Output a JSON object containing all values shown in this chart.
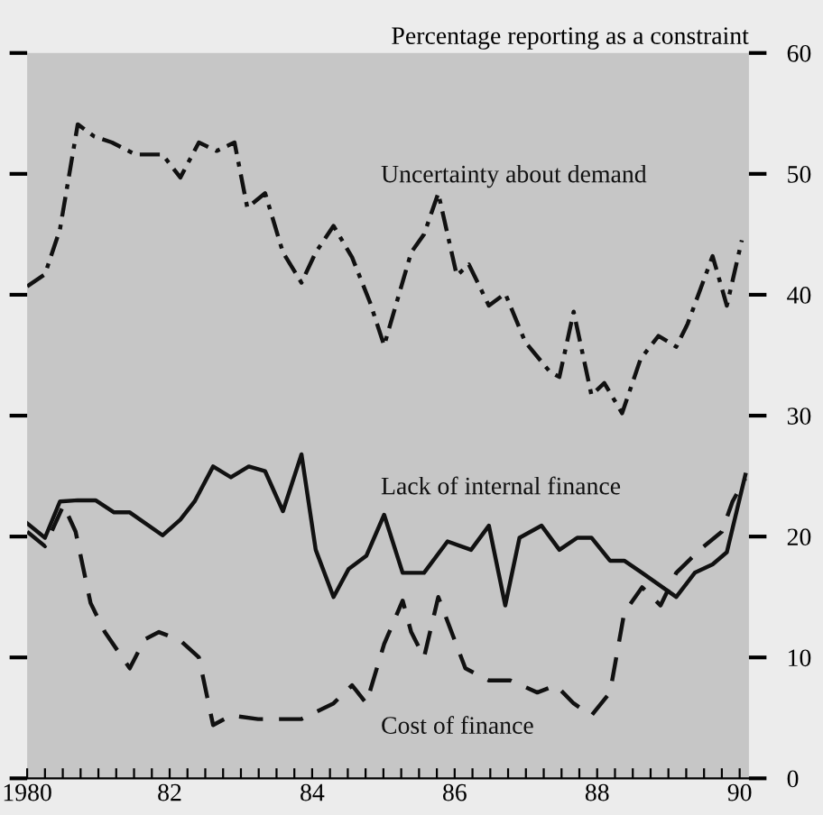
{
  "chart_data": {
    "type": "line",
    "ylabel": "Percentage reporting as a constraint",
    "xlim": [
      1980,
      1990.13
    ],
    "ylim": [
      0,
      60
    ],
    "xticks": [
      {
        "value": 1980,
        "label": "1980"
      },
      {
        "value": 1980.25,
        "label": null
      },
      {
        "value": 1980.5,
        "label": null
      },
      {
        "value": 1980.75,
        "label": null
      },
      {
        "value": 1981,
        "label": null
      },
      {
        "value": 1981.25,
        "label": null
      },
      {
        "value": 1981.5,
        "label": null
      },
      {
        "value": 1981.75,
        "label": null
      },
      {
        "value": 1982,
        "label": "82"
      },
      {
        "value": 1982.25,
        "label": null
      },
      {
        "value": 1982.5,
        "label": null
      },
      {
        "value": 1982.75,
        "label": null
      },
      {
        "value": 1983,
        "label": null
      },
      {
        "value": 1983.25,
        "label": null
      },
      {
        "value": 1983.5,
        "label": null
      },
      {
        "value": 1983.75,
        "label": null
      },
      {
        "value": 1984,
        "label": "84"
      },
      {
        "value": 1984.25,
        "label": null
      },
      {
        "value": 1984.5,
        "label": null
      },
      {
        "value": 1984.75,
        "label": null
      },
      {
        "value": 1985,
        "label": null
      },
      {
        "value": 1985.25,
        "label": null
      },
      {
        "value": 1985.5,
        "label": null
      },
      {
        "value": 1985.75,
        "label": null
      },
      {
        "value": 1986,
        "label": "86"
      },
      {
        "value": 1986.25,
        "label": null
      },
      {
        "value": 1986.5,
        "label": null
      },
      {
        "value": 1986.75,
        "label": null
      },
      {
        "value": 1987,
        "label": null
      },
      {
        "value": 1987.25,
        "label": null
      },
      {
        "value": 1987.5,
        "label": null
      },
      {
        "value": 1987.75,
        "label": null
      },
      {
        "value": 1988,
        "label": "88"
      },
      {
        "value": 1988.25,
        "label": null
      },
      {
        "value": 1988.5,
        "label": null
      },
      {
        "value": 1988.75,
        "label": null
      },
      {
        "value": 1989,
        "label": null
      },
      {
        "value": 1989.25,
        "label": null
      },
      {
        "value": 1989.5,
        "label": null
      },
      {
        "value": 1989.75,
        "label": null
      },
      {
        "value": 1990,
        "label": "90"
      }
    ],
    "yticks": [
      0,
      10,
      20,
      30,
      40,
      50,
      60
    ],
    "grid": false,
    "legend": false,
    "marker": "none",
    "series": [
      {
        "name": "Uncertainty about demand",
        "color": "#111111",
        "line_style": "dashdot",
        "x": [
          1980,
          1980.25,
          1980.46,
          1980.71,
          1980.94,
          1981.19,
          1981.52,
          1981.9,
          1982.15,
          1982.41,
          1982.66,
          1982.91,
          1983.09,
          1983.34,
          1983.59,
          1983.85,
          1984.05,
          1984.3,
          1984.56,
          1984.81,
          1985.01,
          1985.39,
          1985.57,
          1985.77,
          1985.9,
          1986.03,
          1986.2,
          1986.48,
          1986.71,
          1986.99,
          1987.34,
          1987.47,
          1987.67,
          1987.92,
          1988.1,
          1988.35,
          1988.61,
          1988.86,
          1989.11,
          1989.27,
          1989.62,
          1989.82,
          1990.03
        ],
        "values": [
          40.7,
          41.7,
          45.4,
          54.1,
          53.1,
          52.6,
          51.6,
          51.6,
          49.7,
          52.6,
          51.9,
          52.6,
          47.2,
          48.4,
          43.5,
          41.0,
          43.5,
          45.7,
          43.1,
          39.4,
          35.8,
          43.5,
          45.0,
          48.4,
          45.0,
          41.6,
          42.5,
          39.1,
          40.1,
          36.1,
          33.6,
          33.2,
          38.6,
          31.7,
          32.7,
          30.2,
          34.7,
          36.6,
          35.7,
          37.6,
          43.2,
          39.1,
          44.5
        ]
      },
      {
        "name": "Lack of internal finance",
        "color": "#111111",
        "line_style": "solid",
        "x": [
          1980,
          1980.25,
          1980.46,
          1980.71,
          1980.96,
          1981.22,
          1981.44,
          1981.9,
          1982.15,
          1982.35,
          1982.61,
          1982.86,
          1983.11,
          1983.34,
          1983.59,
          1983.85,
          1984.05,
          1984.3,
          1984.51,
          1984.76,
          1985.01,
          1985.27,
          1985.57,
          1985.9,
          1986.23,
          1986.48,
          1986.71,
          1986.91,
          1987.22,
          1987.47,
          1987.72,
          1987.92,
          1988.18,
          1988.38,
          1988.63,
          1989.11,
          1989.37,
          1989.62,
          1989.82,
          1990.08
        ],
        "values": [
          21.1,
          19.9,
          22.9,
          23.0,
          23.0,
          22.0,
          22.0,
          20.1,
          21.4,
          22.9,
          25.8,
          24.9,
          25.8,
          25.4,
          22.1,
          26.8,
          18.9,
          15.0,
          17.3,
          18.4,
          21.8,
          17.0,
          17.0,
          19.6,
          18.9,
          20.9,
          14.3,
          19.9,
          20.9,
          18.9,
          19.9,
          19.9,
          18.0,
          18.0,
          17.0,
          15.0,
          17.0,
          17.7,
          18.7,
          25.1
        ]
      },
      {
        "name": "Cost of finance",
        "color": "#111111",
        "line_style": "dashed",
        "x": [
          1980,
          1980.25,
          1980.51,
          1980.68,
          1980.89,
          1981.09,
          1981.44,
          1981.65,
          1981.85,
          1982.15,
          1982.41,
          1982.61,
          1982.86,
          1983.24,
          1983.85,
          1984.3,
          1984.56,
          1984.76,
          1985.01,
          1985.27,
          1985.39,
          1985.57,
          1985.77,
          1986.15,
          1986.48,
          1986.78,
          1987.16,
          1987.42,
          1987.67,
          1987.92,
          1988.18,
          1988.38,
          1988.63,
          1988.89,
          1989.11,
          1989.44,
          1989.75,
          1989.9,
          1990.08
        ],
        "values": [
          20.4,
          19.2,
          22.6,
          20.4,
          14.5,
          12.1,
          9.1,
          11.5,
          12.1,
          11.4,
          10.0,
          4.4,
          5.2,
          4.9,
          4.9,
          6.2,
          7.7,
          6.2,
          11.1,
          14.7,
          12.1,
          10.0,
          15.0,
          9.1,
          8.1,
          8.1,
          7.1,
          7.7,
          6.2,
          5.2,
          7.1,
          13.7,
          15.8,
          14.3,
          17.0,
          18.9,
          20.4,
          22.9,
          24.8
        ]
      }
    ]
  }
}
